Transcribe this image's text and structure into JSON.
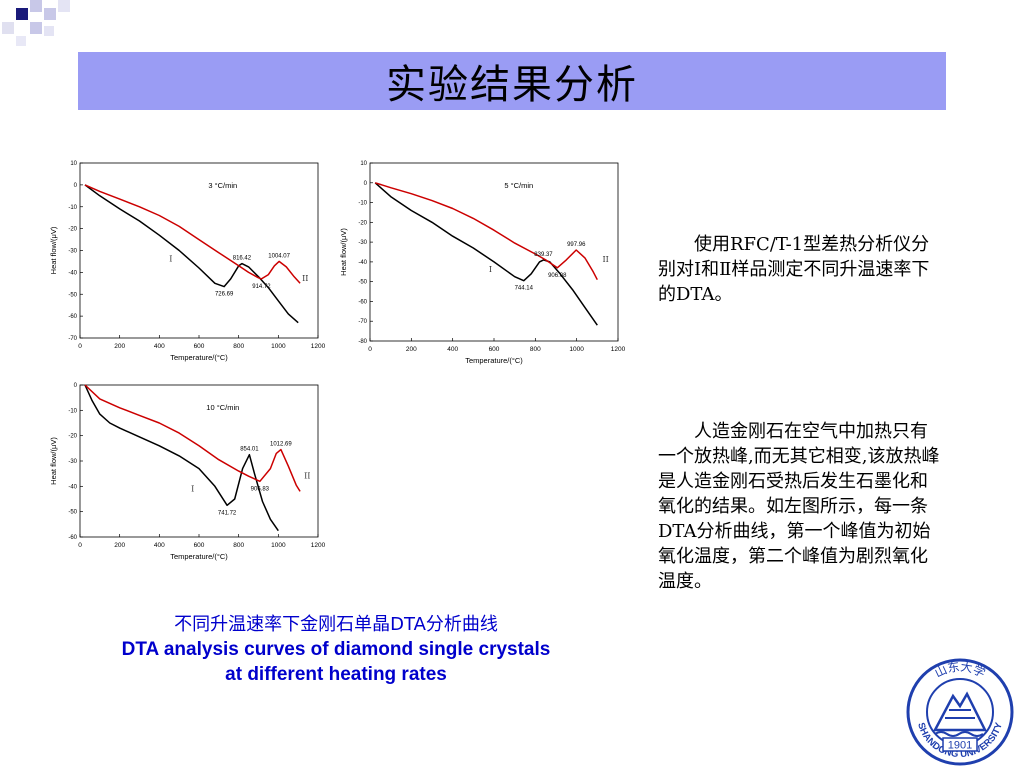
{
  "title": "实验结果分析",
  "texts": {
    "para1": "使用RFC/T-1型差热分析仪分别对Ⅰ和Ⅱ样品测定不同升温速率下的DTA。",
    "para2": "人造金刚石在空气中加热只有一个放热峰,而无其它相变,该放热峰是人造金刚石受热后发生石墨化和氧化的结果。如左图所示，每一条DTA分析曲线，第一个峰值为初始氧化温度，第二个峰值为剧烈氧化温度。"
  },
  "caption": {
    "zh": "不同升温速率下金刚石单晶DTA分析曲线",
    "en": "DTA analysis curves of diamond single crystals at different heating rates"
  },
  "logo": {
    "year": "1901",
    "text": "SHANDONG UNIVERSITY",
    "name": "山东大学"
  },
  "colors": {
    "title_bg": "#9a9cf4",
    "curve_I": "#000000",
    "curve_II": "#cc0000",
    "caption": "#0000cc"
  },
  "chart_data": [
    {
      "type": "line",
      "title": "3 °C/min",
      "xlabel": "Temperature/(°C)",
      "ylabel": "Heat flow/(μV)",
      "xlim": [
        0,
        1200
      ],
      "ylim": [
        -70,
        10
      ],
      "xticks": [
        0,
        200,
        400,
        600,
        800,
        1000,
        1200
      ],
      "yticks": [
        10,
        0,
        -10,
        -20,
        -30,
        -40,
        -50,
        -60,
        -70
      ],
      "series": [
        {
          "name": "I",
          "color": "#000000",
          "label_at": [
            450,
            -35
          ],
          "x": [
            25,
            100,
            200,
            300,
            400,
            500,
            600,
            680,
            726.69,
            760,
            800,
            816.42,
            850,
            900,
            950,
            1000,
            1050,
            1100
          ],
          "y": [
            0,
            -5,
            -11,
            -16.5,
            -23,
            -30,
            -38,
            -45,
            -46.5,
            -43,
            -37,
            -36,
            -37.5,
            -42,
            -47,
            -53,
            -59,
            -63
          ]
        },
        {
          "name": "II",
          "color": "#cc0000",
          "label_at": [
            1120,
            -44
          ],
          "x": [
            25,
            100,
            200,
            300,
            400,
            500,
            600,
            700,
            800,
            850,
            900,
            914.72,
            950,
            980,
            1004.07,
            1040,
            1080,
            1110
          ],
          "y": [
            0,
            -3,
            -6.5,
            -10,
            -14,
            -19,
            -25,
            -31,
            -37,
            -40,
            -42.5,
            -43,
            -41,
            -37,
            -35,
            -37.5,
            -42,
            -45
          ]
        }
      ],
      "annotations": [
        {
          "text": "726.69",
          "x": 726.69,
          "y": -46.5
        },
        {
          "text": "816.42",
          "x": 816.42,
          "y": -36
        },
        {
          "text": "914.72",
          "x": 914.72,
          "y": -43
        },
        {
          "text": "1004.07",
          "x": 1004.07,
          "y": -35
        }
      ]
    },
    {
      "type": "line",
      "title": "5 °C/min",
      "xlabel": "Temperature/(°C)",
      "ylabel": "Heat flow/(μV)",
      "xlim": [
        0,
        1200
      ],
      "ylim": [
        -80,
        10
      ],
      "xticks": [
        0,
        200,
        400,
        600,
        800,
        1000,
        1200
      ],
      "yticks": [
        10,
        0,
        -10,
        -20,
        -30,
        -40,
        -50,
        -60,
        -70,
        -80
      ],
      "series": [
        {
          "name": "I",
          "color": "#000000",
          "label_at": [
            575,
            -45
          ],
          "x": [
            25,
            100,
            200,
            300,
            400,
            500,
            600,
            700,
            744.14,
            780,
            820,
            839.37,
            870,
            920,
            980,
            1040,
            1100
          ],
          "y": [
            0,
            -7,
            -14,
            -20,
            -27,
            -33,
            -40,
            -47.5,
            -49.5,
            -46,
            -40,
            -39,
            -40,
            -46,
            -54,
            -63,
            -72
          ]
        },
        {
          "name": "II",
          "color": "#cc0000",
          "label_at": [
            1125,
            -40
          ],
          "x": [
            25,
            100,
            200,
            300,
            400,
            500,
            600,
            700,
            800,
            850,
            906.08,
            950,
            997.96,
            1040,
            1080,
            1100
          ],
          "y": [
            0,
            -2.5,
            -5.5,
            -9,
            -13,
            -18,
            -24,
            -30.5,
            -36,
            -39,
            -43,
            -39,
            -34,
            -38,
            -45,
            -49
          ]
        }
      ],
      "annotations": [
        {
          "text": "744.14",
          "x": 744.14,
          "y": -49.5
        },
        {
          "text": "839.37",
          "x": 839.37,
          "y": -39
        },
        {
          "text": "906.08",
          "x": 906.08,
          "y": -43
        },
        {
          "text": "997.96",
          "x": 997.96,
          "y": -34
        }
      ]
    },
    {
      "type": "line",
      "title": "10 °C/min",
      "xlabel": "Temperature/(°C)",
      "ylabel": "Heat flow/(μV)",
      "xlim": [
        0,
        1200
      ],
      "ylim": [
        -60,
        0
      ],
      "xticks": [
        0,
        200,
        400,
        600,
        800,
        1000,
        1200
      ],
      "yticks": [
        0,
        -10,
        -20,
        -30,
        -40,
        -50,
        -60
      ],
      "series": [
        {
          "name": "I",
          "color": "#000000",
          "label_at": [
            560,
            -42
          ],
          "x": [
            25,
            60,
            100,
            150,
            200,
            300,
            400,
            500,
            600,
            680,
            741.72,
            780,
            820,
            854.01,
            880,
            920,
            960,
            1000
          ],
          "y": [
            0,
            -6,
            -11.5,
            -15,
            -17,
            -20.5,
            -24,
            -28,
            -33,
            -40,
            -47.5,
            -45,
            -33,
            -27.5,
            -35,
            -46,
            -53,
            -57.5
          ]
        },
        {
          "name": "II",
          "color": "#cc0000",
          "label_at": [
            1130,
            -37
          ],
          "x": [
            25,
            100,
            200,
            300,
            400,
            500,
            600,
            700,
            800,
            850,
            906.83,
            960,
            990,
            1012.69,
            1050,
            1090,
            1110
          ],
          "y": [
            0,
            -5.5,
            -9,
            -12,
            -15,
            -19,
            -24,
            -29.5,
            -34,
            -36,
            -38,
            -33,
            -27,
            -25.5,
            -32,
            -39.5,
            -42
          ]
        }
      ],
      "annotations": [
        {
          "text": "741.72",
          "x": 741.72,
          "y": -47.5
        },
        {
          "text": "854.01",
          "x": 854.01,
          "y": -27.5
        },
        {
          "text": "906.83",
          "x": 906.83,
          "y": -38
        },
        {
          "text": "1012.69",
          "x": 1012.69,
          "y": -25.5
        }
      ]
    }
  ]
}
